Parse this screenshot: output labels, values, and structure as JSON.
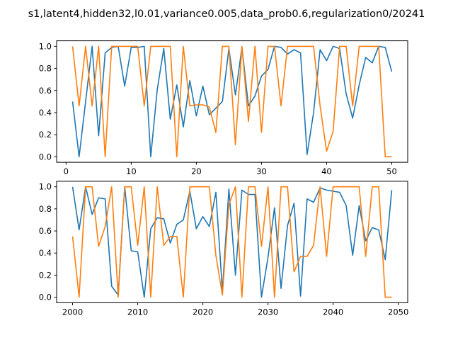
{
  "figure": {
    "title": "s1,latent4,hidden32,l0.01,variance0.005,data_prob0.6,regularization0/20241"
  },
  "colors": {
    "blue": "#1f77b4",
    "orange": "#ff7f0e"
  },
  "chart_data": [
    {
      "type": "line",
      "xlim": [
        -1.45,
        52.45
      ],
      "ylim": [
        -0.05,
        1.05
      ],
      "xticks": [
        0,
        10,
        20,
        30,
        40,
        50
      ],
      "yticks": [
        0.0,
        0.2,
        0.4,
        0.6,
        0.8,
        1.0
      ],
      "xtick_labels": [
        "0",
        "10",
        "20",
        "30",
        "40",
        "50"
      ],
      "ytick_labels": [
        "0.0",
        "0.2",
        "0.4",
        "0.6",
        "0.8",
        "1.0"
      ],
      "x": [
        1,
        2,
        3,
        4,
        5,
        6,
        7,
        8,
        9,
        10,
        11,
        12,
        13,
        14,
        15,
        16,
        17,
        18,
        19,
        20,
        21,
        22,
        23,
        24,
        25,
        26,
        27,
        28,
        29,
        30,
        31,
        32,
        33,
        34,
        35,
        36,
        37,
        38,
        39,
        40,
        41,
        42,
        43,
        44,
        45,
        46,
        47,
        48,
        49,
        50
      ],
      "series": [
        {
          "color": "#1f77b4",
          "values": [
            0.5,
            0.0,
            0.5,
            1.0,
            0.19,
            0.94,
            0.99,
            1.0,
            0.64,
            0.99,
            0.99,
            1.0,
            0.0,
            0.61,
            0.98,
            0.34,
            0.65,
            0.27,
            0.69,
            0.37,
            0.64,
            0.38,
            0.44,
            0.5,
            0.98,
            0.56,
            0.99,
            0.46,
            0.55,
            0.73,
            0.79,
            1.0,
            0.99,
            0.93,
            0.97,
            0.94,
            0.02,
            0.4,
            0.97,
            0.87,
            1.0,
            0.98,
            0.57,
            0.35,
            0.65,
            0.9,
            0.85,
            1.0,
            0.99,
            0.77
          ]
        },
        {
          "color": "#ff7f0e",
          "values": [
            1.0,
            0.46,
            1.0,
            0.46,
            1.0,
            0.0,
            1.0,
            1.0,
            1.0,
            1.0,
            1.0,
            0.46,
            1.0,
            1.0,
            1.0,
            1.0,
            0.0,
            1.0,
            0.46,
            0.47,
            0.47,
            0.45,
            0.22,
            1.0,
            1.0,
            0.11,
            1.0,
            0.32,
            1.0,
            0.22,
            1.0,
            1.0,
            0.46,
            1.0,
            1.0,
            1.0,
            1.0,
            1.0,
            0.46,
            0.05,
            0.23,
            1.0,
            1.0,
            0.46,
            1.0,
            1.0,
            1.0,
            1.0,
            0.0,
            0.0
          ]
        }
      ]
    },
    {
      "type": "line",
      "xlim": [
        1997.55,
        2051.45
      ],
      "ylim": [
        -0.05,
        1.05
      ],
      "xticks": [
        2000,
        2010,
        2020,
        2030,
        2040,
        2050
      ],
      "yticks": [
        0.0,
        0.2,
        0.4,
        0.6,
        0.8,
        1.0
      ],
      "xtick_labels": [
        "2000",
        "2010",
        "2020",
        "2030",
        "2040",
        "2050"
      ],
      "ytick_labels": [
        "0.0",
        "0.2",
        "0.4",
        "0.6",
        "0.8",
        "1.0"
      ],
      "x": [
        2000,
        2001,
        2002,
        2003,
        2004,
        2005,
        2006,
        2007,
        2008,
        2009,
        2010,
        2011,
        2012,
        2013,
        2014,
        2015,
        2016,
        2017,
        2018,
        2019,
        2020,
        2021,
        2022,
        2023,
        2024,
        2025,
        2026,
        2027,
        2028,
        2029,
        2030,
        2031,
        2032,
        2033,
        2034,
        2035,
        2036,
        2037,
        2038,
        2039,
        2040,
        2041,
        2042,
        2043,
        2044,
        2045,
        2046,
        2047,
        2048,
        2049
      ],
      "series": [
        {
          "color": "#1f77b4",
          "values": [
            1.0,
            0.61,
            1.0,
            0.75,
            0.9,
            0.89,
            0.1,
            0.02,
            1.0,
            0.42,
            0.41,
            0.0,
            0.62,
            0.72,
            0.71,
            0.49,
            0.66,
            0.7,
            0.96,
            0.62,
            0.73,
            0.64,
            0.95,
            0.06,
            0.98,
            0.2,
            0.97,
            0.93,
            0.93,
            0.0,
            0.36,
            0.81,
            0.08,
            0.65,
            0.85,
            0.01,
            0.89,
            0.86,
            0.99,
            0.97,
            0.96,
            0.95,
            0.83,
            0.38,
            0.83,
            0.51,
            0.63,
            0.61,
            0.34,
            0.97
          ]
        },
        {
          "color": "#ff7f0e",
          "values": [
            0.55,
            0.0,
            1.0,
            1.0,
            0.46,
            0.64,
            1.0,
            0.0,
            1.0,
            1.0,
            0.47,
            1.0,
            0.0,
            1.0,
            0.47,
            0.55,
            0.55,
            0.0,
            1.0,
            1.0,
            1.0,
            1.0,
            0.38,
            0.02,
            0.84,
            1.0,
            0.0,
            1.0,
            1.0,
            0.46,
            1.0,
            0.0,
            1.0,
            1.0,
            0.23,
            0.37,
            0.37,
            0.47,
            1.0,
            0.37,
            1.0,
            1.0,
            1.0,
            1.0,
            1.0,
            0.37,
            1.0,
            1.0,
            0.0,
            0.0
          ]
        }
      ]
    }
  ]
}
